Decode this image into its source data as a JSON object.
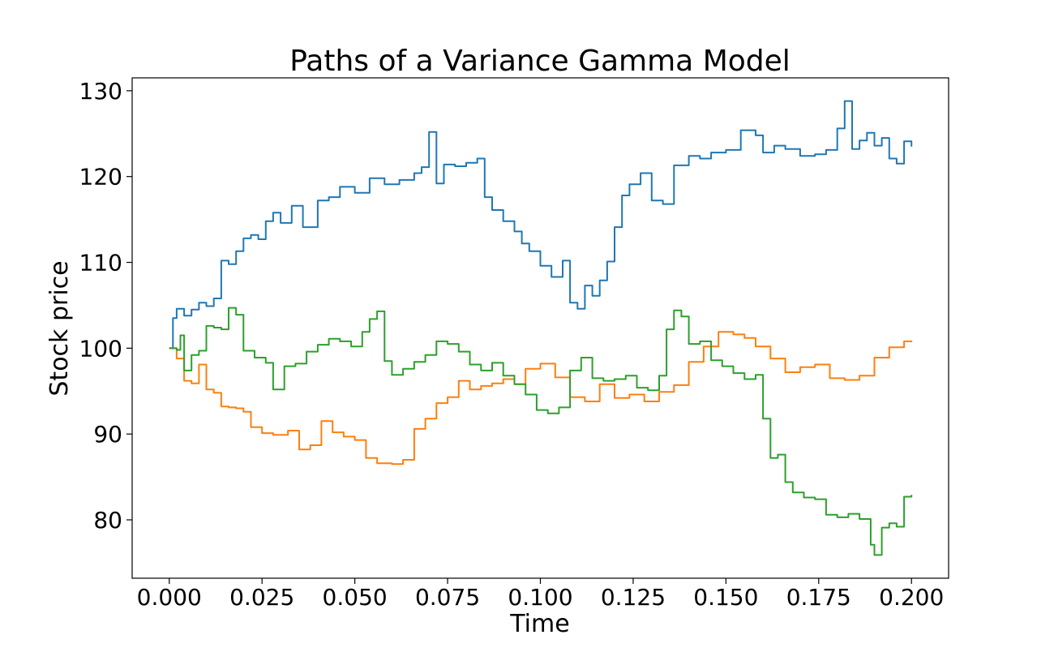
{
  "chart_data": {
    "type": "line",
    "title": "Paths of a Variance Gamma Model",
    "xlabel": "Time",
    "ylabel": "Stock price",
    "xlim": [
      -0.01,
      0.21
    ],
    "ylim": [
      73.2,
      131.5
    ],
    "xticks": [
      0.0,
      0.025,
      0.05,
      0.075,
      0.1,
      0.125,
      0.15,
      0.175,
      0.2
    ],
    "xtick_labels": [
      "0.000",
      "0.025",
      "0.050",
      "0.075",
      "0.100",
      "0.125",
      "0.150",
      "0.175",
      "0.200"
    ],
    "yticks": [
      80,
      90,
      100,
      110,
      120,
      130
    ],
    "ytick_labels": [
      "80",
      "90",
      "100",
      "110",
      "120",
      "130"
    ],
    "grid": false,
    "colors": [
      "#1f77b4",
      "#ff7f0e",
      "#2ca02c"
    ],
    "series": [
      {
        "x": [
          0.0,
          0.001,
          0.002,
          0.004,
          0.006,
          0.008,
          0.01,
          0.012,
          0.014,
          0.016,
          0.018,
          0.02,
          0.022,
          0.024,
          0.026,
          0.028,
          0.03,
          0.033,
          0.036,
          0.04,
          0.043,
          0.046,
          0.05,
          0.054,
          0.058,
          0.062,
          0.066,
          0.068,
          0.07,
          0.072,
          0.074,
          0.077,
          0.08,
          0.083,
          0.085,
          0.087,
          0.09,
          0.093,
          0.095,
          0.097,
          0.1,
          0.103,
          0.106,
          0.108,
          0.11,
          0.112,
          0.114,
          0.116,
          0.118,
          0.12,
          0.122,
          0.124,
          0.127,
          0.13,
          0.133,
          0.136,
          0.14,
          0.143,
          0.146,
          0.15,
          0.154,
          0.158,
          0.16,
          0.163,
          0.166,
          0.17,
          0.174,
          0.177,
          0.18,
          0.182,
          0.184,
          0.186,
          0.188,
          0.19,
          0.192,
          0.194,
          0.196,
          0.198,
          0.2
        ],
        "values": [
          100.0,
          103.5,
          104.6,
          103.8,
          104.5,
          105.3,
          104.9,
          105.8,
          110.2,
          109.8,
          111.3,
          112.8,
          113.2,
          112.7,
          114.8,
          115.8,
          114.6,
          116.6,
          114.1,
          117.2,
          117.6,
          118.8,
          118.1,
          119.8,
          119.1,
          119.6,
          120.4,
          121.1,
          125.2,
          119.2,
          121.4,
          121.2,
          121.6,
          122.1,
          117.6,
          116.1,
          114.8,
          113.6,
          112.2,
          111.3,
          109.6,
          108.3,
          110.2,
          105.3,
          104.6,
          107.3,
          106.1,
          107.9,
          110.1,
          114.1,
          117.8,
          119.1,
          120.4,
          117.2,
          116.8,
          121.3,
          122.4,
          122.1,
          122.8,
          123.1,
          125.4,
          124.8,
          122.8,
          123.6,
          123.2,
          122.4,
          122.6,
          123.1,
          125.6,
          128.8,
          123.2,
          124.2,
          125.1,
          123.6,
          124.5,
          122.1,
          121.5,
          124.1,
          123.5
        ]
      },
      {
        "x": [
          0.0,
          0.002,
          0.004,
          0.006,
          0.008,
          0.01,
          0.012,
          0.014,
          0.016,
          0.018,
          0.02,
          0.022,
          0.025,
          0.028,
          0.032,
          0.035,
          0.038,
          0.041,
          0.044,
          0.047,
          0.05,
          0.053,
          0.056,
          0.06,
          0.063,
          0.066,
          0.069,
          0.072,
          0.075,
          0.078,
          0.081,
          0.084,
          0.087,
          0.09,
          0.093,
          0.096,
          0.1,
          0.104,
          0.108,
          0.112,
          0.116,
          0.12,
          0.124,
          0.128,
          0.132,
          0.136,
          0.14,
          0.144,
          0.148,
          0.152,
          0.155,
          0.158,
          0.162,
          0.166,
          0.17,
          0.174,
          0.178,
          0.182,
          0.186,
          0.19,
          0.194,
          0.198,
          0.2
        ],
        "values": [
          100.0,
          98.8,
          96.2,
          95.9,
          98.1,
          95.2,
          94.8,
          93.2,
          93.1,
          93.0,
          92.6,
          90.8,
          90.1,
          89.9,
          90.4,
          88.2,
          88.7,
          91.5,
          90.2,
          89.7,
          89.3,
          87.2,
          86.6,
          86.5,
          87.0,
          90.6,
          91.8,
          93.6,
          94.3,
          96.2,
          95.2,
          95.6,
          95.9,
          96.4,
          95.8,
          97.6,
          98.2,
          96.6,
          94.3,
          93.8,
          95.8,
          94.2,
          94.6,
          93.8,
          94.9,
          95.7,
          98.4,
          100.2,
          101.9,
          101.6,
          101.2,
          100.2,
          98.8,
          97.2,
          97.8,
          98.1,
          96.5,
          96.3,
          96.8,
          98.9,
          100.1,
          100.8,
          100.7
        ]
      },
      {
        "x": [
          0.0,
          0.002,
          0.003,
          0.004,
          0.006,
          0.008,
          0.01,
          0.012,
          0.014,
          0.016,
          0.018,
          0.02,
          0.023,
          0.026,
          0.028,
          0.031,
          0.034,
          0.037,
          0.04,
          0.043,
          0.046,
          0.049,
          0.052,
          0.054,
          0.056,
          0.058,
          0.06,
          0.063,
          0.066,
          0.069,
          0.072,
          0.075,
          0.078,
          0.081,
          0.084,
          0.087,
          0.09,
          0.093,
          0.096,
          0.099,
          0.102,
          0.105,
          0.108,
          0.111,
          0.114,
          0.117,
          0.12,
          0.123,
          0.126,
          0.129,
          0.132,
          0.134,
          0.136,
          0.138,
          0.14,
          0.143,
          0.146,
          0.149,
          0.152,
          0.155,
          0.158,
          0.16,
          0.162,
          0.164,
          0.166,
          0.168,
          0.171,
          0.174,
          0.177,
          0.18,
          0.183,
          0.186,
          0.189,
          0.19,
          0.192,
          0.194,
          0.196,
          0.198,
          0.2
        ],
        "values": [
          100.0,
          99.8,
          101.5,
          97.4,
          99.2,
          99.7,
          102.6,
          102.4,
          102.2,
          104.7,
          103.9,
          99.7,
          98.9,
          98.3,
          95.2,
          97.9,
          98.2,
          99.6,
          100.4,
          101.1,
          100.8,
          100.2,
          101.9,
          103.4,
          104.3,
          98.5,
          96.9,
          97.6,
          98.4,
          99.2,
          100.8,
          100.5,
          99.6,
          98.1,
          97.4,
          98.3,
          96.8,
          95.8,
          94.6,
          92.8,
          92.4,
          93.1,
          97.4,
          98.9,
          96.5,
          96.2,
          96.4,
          96.8,
          95.4,
          95.1,
          96.8,
          102.2,
          104.4,
          103.7,
          100.5,
          100.8,
          98.6,
          97.9,
          97.1,
          96.4,
          96.9,
          91.8,
          87.2,
          87.6,
          84.4,
          83.2,
          82.6,
          82.4,
          80.6,
          80.3,
          80.7,
          80.1,
          77.1,
          75.9,
          79.1,
          79.6,
          79.2,
          82.7,
          82.9
        ]
      }
    ]
  }
}
